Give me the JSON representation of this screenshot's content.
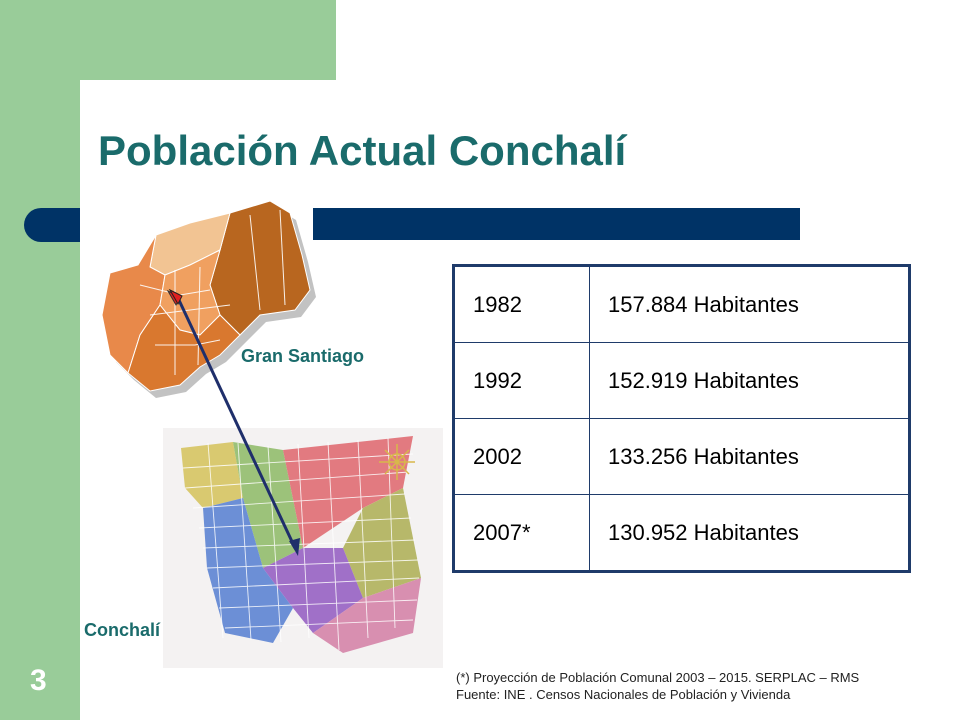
{
  "slide": {
    "title": "Población Actual Conchalí",
    "number": "3"
  },
  "maps": {
    "gran_santiago_label": "Gran Santiago",
    "conchali_label": "Conchalí"
  },
  "table": {
    "rows": [
      {
        "year": "1982",
        "value": "157.884 Habitantes"
      },
      {
        "year": "1992",
        "value": "152.919 Habitantes"
      },
      {
        "year": "2002",
        "value": "133.256 Habitantes"
      },
      {
        "year": "2007*",
        "value": "130.952 Habitantes"
      }
    ]
  },
  "footnote": {
    "line1": "(*) Proyección de Población Comunal 2003 – 2015. SERPLAC – RMS",
    "line2": "Fuente: INE .  Censos Nacionales de Población y Vivienda"
  },
  "colors": {
    "green": "#99cc99",
    "navy": "#003366",
    "title_teal": "#1a6b6b"
  }
}
